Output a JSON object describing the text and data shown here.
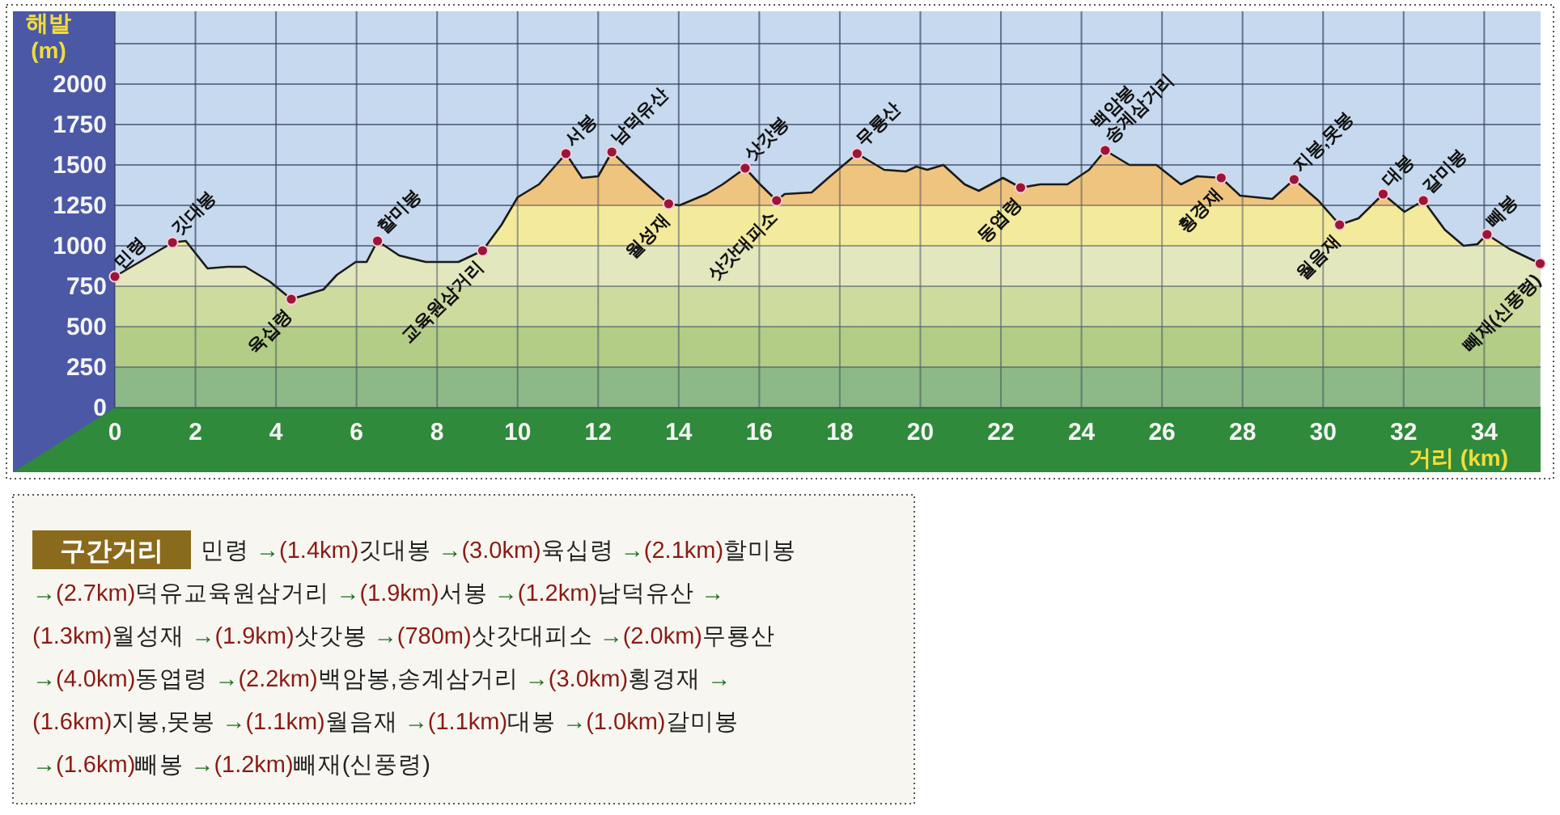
{
  "chart_data": [
    {
      "type": "area",
      "xlabel": "거리 (km)",
      "ylabel": "해발 (m)",
      "xlim": [
        0,
        35.4
      ],
      "ylim": [
        0,
        2450
      ],
      "xticks": [
        0,
        2,
        4,
        6,
        8,
        10,
        12,
        14,
        16,
        18,
        20,
        22,
        24,
        26,
        28,
        30,
        32,
        34
      ],
      "yticks": [
        0,
        250,
        500,
        750,
        1000,
        1250,
        1500,
        1750,
        2000,
        {
          "value": 2250,
          "label": null
        }
      ],
      "grid": true,
      "bands": [
        {
          "axis": "y",
          "from": 0,
          "to": 250,
          "color": "#8db887"
        },
        {
          "axis": "y",
          "from": 250,
          "to": 500,
          "color": "#b3cc86"
        },
        {
          "axis": "y",
          "from": 500,
          "to": 750,
          "color": "#cddb9e"
        },
        {
          "axis": "y",
          "from": 750,
          "to": 1000,
          "color": "#e3e7bd"
        },
        {
          "axis": "y",
          "from": 1000,
          "to": 1250,
          "color": "#f3ea9c"
        },
        {
          "axis": "y",
          "from": 1250,
          "to": 2450,
          "color": "#efc47e"
        }
      ],
      "series": [
        {
          "color": "#1a1a1a",
          "x": [
            0,
            1.43,
            1.76,
            2.3,
            2.79,
            3.24,
            3.84,
            4.38,
            5.18,
            5.51,
            5.98,
            6.25,
            6.52,
            7.06,
            7.72,
            8.53,
            9.13,
            9.6,
            10.0,
            10.33,
            10.53,
            11.2,
            11.6,
            12.0,
            12.34,
            12.8,
            13.2,
            13.75,
            14.02,
            14.69,
            15.09,
            15.65,
            16.02,
            16.43,
            16.63,
            17.3,
            17.76,
            18.43,
            19.1,
            19.64,
            19.9,
            20.17,
            20.57,
            21.1,
            21.45,
            22.05,
            22.49,
            22.98,
            23.65,
            24.19,
            24.59,
            25.19,
            25.86,
            26.47,
            26.87,
            27.47,
            27.94,
            28.74,
            29.28,
            29.88,
            30.41,
            30.88,
            31.49,
            32.02,
            32.49,
            33.02,
            33.49,
            33.83,
            34.07,
            34.63,
            35.39
          ],
          "values": [
            810,
            1020,
            1030,
            860,
            870,
            870,
            780,
            670,
            730,
            820,
            900,
            900,
            1030,
            940,
            900,
            900,
            970,
            1130,
            1300,
            1350,
            1380,
            1570,
            1420,
            1430,
            1580,
            1470,
            1380,
            1260,
            1250,
            1320,
            1380,
            1480,
            1380,
            1280,
            1320,
            1330,
            1430,
            1570,
            1470,
            1460,
            1490,
            1470,
            1500,
            1380,
            1340,
            1420,
            1360,
            1380,
            1380,
            1470,
            1590,
            1500,
            1500,
            1380,
            1430,
            1420,
            1310,
            1290,
            1410,
            1280,
            1130,
            1170,
            1320,
            1210,
            1280,
            1100,
            1000,
            1010,
            1070,
            980,
            890
          ]
        }
      ],
      "annotations": [
        {
          "text": "민령",
          "x": 0,
          "y": 810
        },
        {
          "text": "깃대봉",
          "x": 1.43,
          "y": 1020
        },
        {
          "text": "육십령",
          "x": 4.38,
          "y": 670
        },
        {
          "text": "할미봉",
          "x": 6.52,
          "y": 1030
        },
        {
          "text": "교육원삼거리",
          "x": 9.13,
          "y": 970
        },
        {
          "text": "서봉",
          "x": 11.2,
          "y": 1570
        },
        {
          "text": "남덕유산",
          "x": 12.34,
          "y": 1580
        },
        {
          "text": "월성재",
          "x": 13.75,
          "y": 1260
        },
        {
          "text": "삿갓봉",
          "x": 15.65,
          "y": 1480
        },
        {
          "text": "삿갓대피소",
          "x": 16.43,
          "y": 1280
        },
        {
          "text": "무룡산",
          "x": 18.43,
          "y": 1570
        },
        {
          "text": "동엽령",
          "x": 22.49,
          "y": 1360
        },
        {
          "text": "백암봉\n송계삼거리",
          "x": 24.59,
          "y": 1590
        },
        {
          "text": "횡경재",
          "x": 27.47,
          "y": 1420
        },
        {
          "text": "지봉,못봉",
          "x": 29.28,
          "y": 1410
        },
        {
          "text": "월음재",
          "x": 30.41,
          "y": 1130
        },
        {
          "text": "대봉",
          "x": 31.49,
          "y": 1320
        },
        {
          "text": "갈미봉",
          "x": 32.49,
          "y": 1280
        },
        {
          "text": "빼봉",
          "x": 34.07,
          "y": 1070
        },
        {
          "text": "빼재(신풍령)",
          "x": 35.39,
          "y": 890
        }
      ]
    },
    {
      "type": "other",
      "title": "구간거리",
      "annotations": [
        "민령 →(1.4km)깃대봉 →(3.0km)육십령 →(2.1km)할미봉",
        "→(2.7km)덕유교육원삼거리 →(1.9km)서봉 →(1.2km)남덕유산 →",
        "(1.3km)월성재 →(1.9km)삿갓봉 →(780m)삿갓대피소 →(2.0km)무룡산",
        "→(4.0km)동엽령 →(2.2km)백암봉,송계삼거리 →(3.0km)횡경재 →",
        "(1.6km)지봉,못봉 →(1.1km)월음재 →(1.1km)대봉 →(1.0km)갈미봉",
        "→(1.6km)빼봉 →(1.2km)빼재(신풍령)"
      ]
    }
  ]
}
